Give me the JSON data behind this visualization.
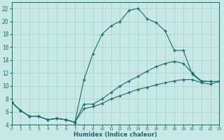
{
  "xlabel": "Humidex (Indice chaleur)",
  "xlim": [
    0,
    23
  ],
  "ylim": [
    4,
    23
  ],
  "yticks": [
    4,
    6,
    8,
    10,
    12,
    14,
    16,
    18,
    20,
    22
  ],
  "xticks": [
    0,
    1,
    2,
    3,
    4,
    5,
    6,
    7,
    8,
    9,
    10,
    11,
    12,
    13,
    14,
    15,
    16,
    17,
    18,
    19,
    20,
    21,
    22,
    23
  ],
  "bg_color": "#c8e8e5",
  "grid_color": "#aed4d0",
  "line_color": "#1a6b6b",
  "curve1_x": [
    0,
    1,
    2,
    3,
    4,
    5,
    6,
    7,
    8,
    9,
    10,
    11,
    12,
    13,
    14,
    15,
    16,
    17,
    18,
    19,
    20,
    21,
    22,
    23
  ],
  "curve1_y": [
    7.5,
    6.2,
    5.3,
    5.3,
    4.8,
    5.0,
    4.8,
    4.4,
    11.0,
    15.0,
    18.0,
    19.3,
    20.0,
    21.7,
    22.0,
    20.4,
    19.8,
    18.5,
    15.5,
    15.5,
    11.8,
    10.7,
    10.7,
    10.7
  ],
  "curve2_x": [
    0,
    1,
    2,
    3,
    4,
    5,
    6,
    7,
    8,
    9,
    10,
    11,
    12,
    13,
    14,
    15,
    16,
    17,
    18,
    19,
    20,
    21,
    22,
    23
  ],
  "curve2_y": [
    7.5,
    6.2,
    5.3,
    5.3,
    4.8,
    5.0,
    4.8,
    4.4,
    7.2,
    7.2,
    8.0,
    9.0,
    10.0,
    10.8,
    11.5,
    12.3,
    13.0,
    13.5,
    13.8,
    13.5,
    12.0,
    10.8,
    10.7,
    10.7
  ],
  "curve3_x": [
    0,
    1,
    2,
    3,
    4,
    5,
    6,
    7,
    8,
    9,
    10,
    11,
    12,
    13,
    14,
    15,
    16,
    17,
    18,
    19,
    20,
    21,
    22,
    23
  ],
  "curve3_y": [
    7.5,
    6.2,
    5.3,
    5.3,
    4.8,
    5.0,
    4.8,
    4.4,
    6.5,
    6.8,
    7.3,
    8.0,
    8.5,
    9.0,
    9.5,
    9.8,
    10.2,
    10.5,
    10.8,
    11.0,
    11.0,
    10.5,
    10.3,
    10.7
  ]
}
